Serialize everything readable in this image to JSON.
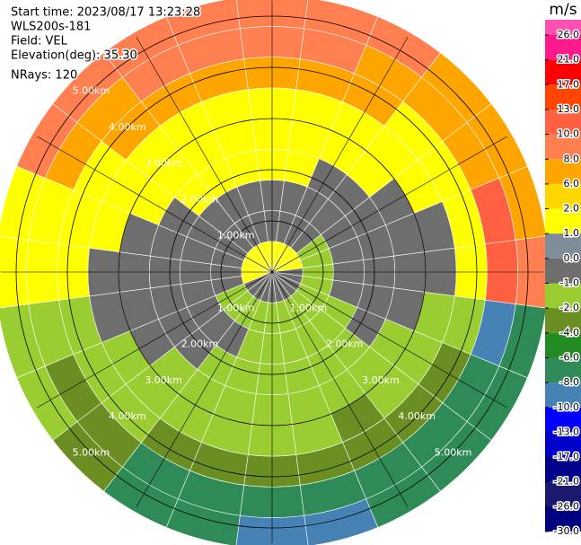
{
  "chart_data": {
    "type": "ppi",
    "info": [
      "Start time: 2023/08/17 13:23:28",
      "WLS200s-181",
      "Field: VEL",
      "Elevation(deg): 35.30",
      "NRays: 120"
    ],
    "colorbar_title": "m/s",
    "colorbar_ticks": [
      {
        "value": 26,
        "label": "26.0"
      },
      {
        "value": 21,
        "label": "21.0"
      },
      {
        "value": 17,
        "label": "17.0"
      },
      {
        "value": 13,
        "label": "13.0"
      },
      {
        "value": 10,
        "label": "10.0"
      },
      {
        "value": 8,
        "label": "8.0"
      },
      {
        "value": 6,
        "label": "6.0"
      },
      {
        "value": 2,
        "label": "2.0"
      },
      {
        "value": 1,
        "label": "1.0"
      },
      {
        "value": 0,
        "label": "0.0"
      },
      {
        "value": -1,
        "label": "-1.0"
      },
      {
        "value": -2,
        "label": "-2.0"
      },
      {
        "value": -4,
        "label": "-4.0"
      },
      {
        "value": -6,
        "label": "-6.0"
      },
      {
        "value": -8,
        "label": "-8.0"
      },
      {
        "value": -10,
        "label": "-10.0"
      },
      {
        "value": -13,
        "label": "-13.0"
      },
      {
        "value": -17,
        "label": "-17.0"
      },
      {
        "value": -21,
        "label": "-21.0"
      },
      {
        "value": -26,
        "label": "-26.0"
      },
      {
        "value": -30,
        "label": "-30.0"
      }
    ],
    "colors": [
      "#ff4fb0",
      "#ff1a8c",
      "#ff0000",
      "#ff4500",
      "#ff6040",
      "#ff7f50",
      "#ffa500",
      "#ffd700",
      "#ffff00",
      "#7f8c9a",
      "#6e6e6e",
      "#9acd32",
      "#6b8e23",
      "#228b22",
      "#2e8b57",
      "#4682b4",
      "#0000ff",
      "#0000cd",
      "#00008b",
      "#191970",
      "#000080"
    ],
    "rings": [
      {
        "value": 1,
        "label": "1.00km"
      },
      {
        "value": 2,
        "label": "2.00km"
      },
      {
        "value": 3,
        "label": "3.00km"
      },
      {
        "value": 4,
        "label": "4.00km"
      },
      {
        "value": 5,
        "label": "5.00km"
      }
    ],
    "azimuths": [
      0,
      15,
      30,
      45,
      60,
      75,
      90,
      105,
      120,
      135,
      150,
      165,
      180,
      195,
      210,
      225,
      240,
      255,
      270,
      285,
      300,
      315,
      330,
      345
    ],
    "ranges": [
      0.3,
      0.9,
      1.5,
      2.1,
      2.7,
      3.3,
      3.9,
      4.5,
      5.1
    ],
    "values": [
      [
        1.5,
        0,
        0,
        1.5,
        1.5,
        1.5,
        7,
        9,
        9
      ],
      [
        1.5,
        0,
        0,
        1.5,
        1.5,
        1.5,
        7,
        9,
        9
      ],
      [
        1.5,
        0,
        0,
        0,
        1.5,
        1.5,
        7,
        7,
        9
      ],
      [
        1.5,
        0,
        0,
        0,
        1.5,
        1.5,
        1.5,
        7,
        7
      ],
      [
        1.5,
        -1.5,
        0,
        0,
        0,
        1.5,
        1.5,
        7,
        7
      ],
      [
        1.5,
        -1.5,
        0,
        0,
        0,
        0,
        1.5,
        12,
        7
      ],
      [
        0,
        -1.5,
        0,
        0,
        0,
        0,
        1.5,
        12,
        9
      ],
      [
        0,
        -1.5,
        0,
        0,
        0,
        -1.5,
        -1.5,
        -9,
        -7
      ],
      [
        0,
        -1.5,
        -1.5,
        0,
        -1.5,
        -1.5,
        -3,
        -7,
        -7
      ],
      [
        0,
        -1.5,
        -1.5,
        -1.5,
        -1.5,
        -1.5,
        -3,
        -7,
        -7
      ],
      [
        0,
        -1.5,
        -1.5,
        -1.5,
        -1.5,
        -3,
        -3,
        -7,
        -7
      ],
      [
        0,
        -1.5,
        -1.5,
        -1.5,
        -1.5,
        -1.5,
        -3,
        -7,
        -9
      ],
      [
        0,
        -1.5,
        -1.5,
        -1.5,
        -1.5,
        -1.5,
        -3,
        -7,
        -9
      ],
      [
        0,
        -1.5,
        -1.5,
        -1.5,
        -1.5,
        -1.5,
        -3,
        -7,
        -7
      ],
      [
        0,
        -1.5,
        0,
        -1.5,
        -1.5,
        -1.5,
        -3,
        -7,
        -7
      ],
      [
        0,
        -1.5,
        0,
        0,
        -1.5,
        -1.5,
        -1.5,
        -3,
        -3
      ],
      [
        0,
        -1.5,
        0,
        0,
        0,
        -1.5,
        -1.5,
        -3,
        -1.5
      ],
      [
        1.5,
        0,
        0,
        0,
        0,
        0,
        -1.5,
        -1.5,
        -1.5
      ],
      [
        1.5,
        0,
        0,
        0,
        0,
        0,
        1.5,
        1.5,
        1.5
      ],
      [
        1.5,
        0,
        0,
        0,
        0,
        1.5,
        1.5,
        1.5,
        1.5
      ],
      [
        1.5,
        0,
        0,
        0,
        1.5,
        1.5,
        1.5,
        7,
        9
      ],
      [
        1.5,
        0,
        0,
        1.5,
        1.5,
        1.5,
        7,
        7,
        9
      ],
      [
        1.5,
        0,
        0,
        1.5,
        1.5,
        1.5,
        7,
        9,
        9
      ],
      [
        1.5,
        0,
        0,
        1.5,
        1.5,
        1.5,
        7,
        9,
        9
      ]
    ]
  }
}
